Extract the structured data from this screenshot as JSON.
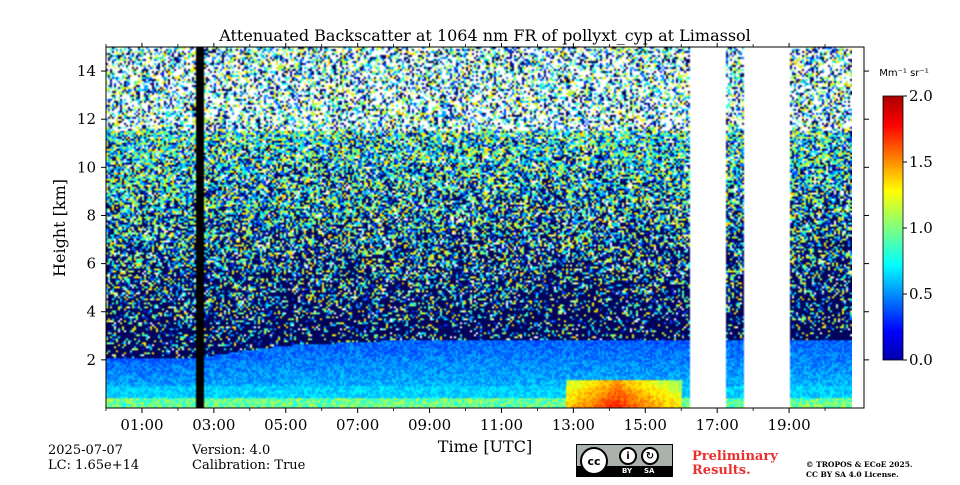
{
  "chart_data": {
    "type": "heatmap",
    "title": "Attenuated Backscatter at 1064 nm FR of pollyxt_cyp at Limassol",
    "xlabel": "Time [UTC]",
    "ylabel": "Height [km]",
    "x_range_hours": [
      0.0,
      20.75
    ],
    "ylim_km": [
      0,
      15
    ],
    "x_ticks": [
      "01:00",
      "03:00",
      "05:00",
      "07:00",
      "09:00",
      "11:00",
      "13:00",
      "15:00",
      "17:00",
      "19:00"
    ],
    "x_tick_hours": [
      1,
      3,
      5,
      7,
      9,
      11,
      13,
      15,
      17,
      19
    ],
    "y_ticks": [
      "2",
      "4",
      "6",
      "8",
      "10",
      "12",
      "14"
    ],
    "y_tick_values": [
      2,
      4,
      6,
      8,
      10,
      12,
      14
    ],
    "colorbar": {
      "label": "Mm⁻¹ sr⁻¹",
      "range": [
        0.0,
        2.0
      ],
      "ticks": [
        "0.0",
        "0.5",
        "1.0",
        "1.5",
        "2.0"
      ],
      "tick_values": [
        0.0,
        0.5,
        1.0,
        1.5,
        2.0
      ],
      "colormap": "jet"
    },
    "no_data_intervals_hours": [
      [
        16.25,
        17.25
      ],
      [
        17.75,
        19.0
      ]
    ],
    "instrument_off_intervals_hours": [
      [
        2.5,
        2.7
      ]
    ],
    "aerosol_layer": {
      "boundary_layer_top_km": [
        2.1,
        2.1,
        2.6,
        2.8,
        2.8,
        2.8,
        2.8,
        2.8
      ],
      "boundary_layer_hours": [
        0,
        2.5,
        5,
        8,
        11,
        13,
        15,
        20.75
      ],
      "peak_backscatter_interval_hours": [
        12.8,
        16.0
      ],
      "peak_backscatter_height_km": 0.5,
      "peak_backscatter_value": 1.6
    },
    "grid": false,
    "legend": "none"
  },
  "footer": {
    "date": "2025-07-07",
    "lc": "LC: 1.65e+14",
    "version": "Version: 4.0",
    "calibration": "Calibration: True",
    "preliminary_line1": "Preliminary",
    "preliminary_line2": "Results.",
    "copyright_line1": "© TROPOS & ECoE 2025.",
    "copyright_line2": "CC BY SA 4.0 License.",
    "cc_badge": {
      "main": "cc",
      "by": "BY",
      "sa": "SA"
    }
  },
  "colors": {
    "background_low": "#0a0a66",
    "no_data": "#ffffff",
    "instrument_off": "#000000"
  }
}
